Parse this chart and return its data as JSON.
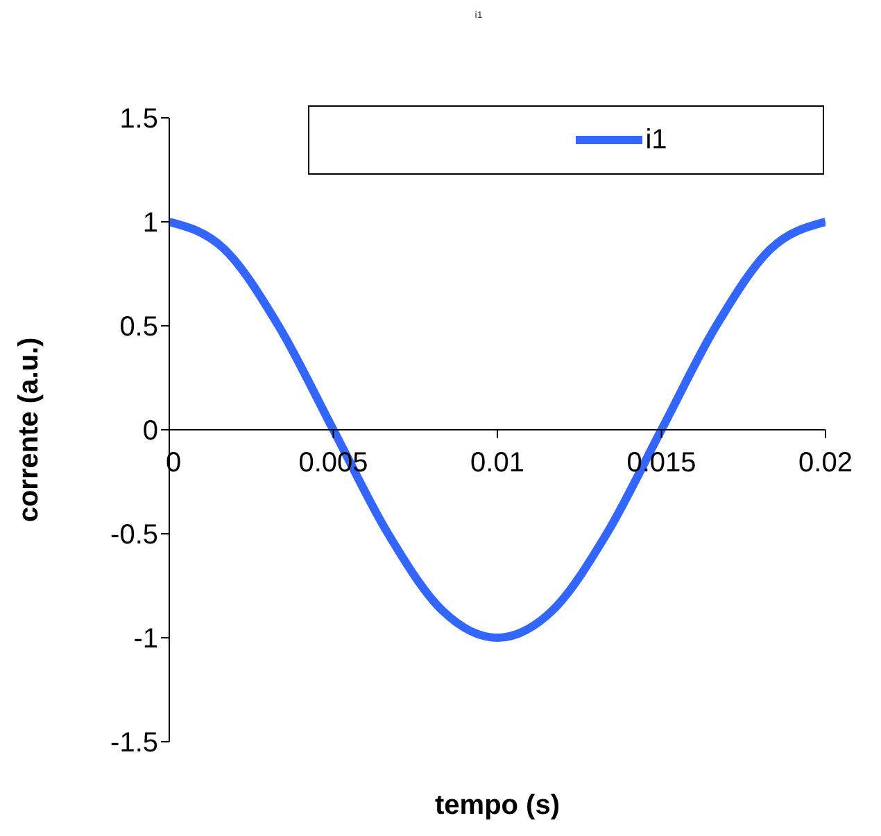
{
  "chart_data": {
    "type": "line",
    "title": "i1",
    "xlabel": "tempo (s)",
    "ylabel": "corrente (a.u.)",
    "x": [
      0,
      0.00167,
      0.00333,
      0.005,
      0.00667,
      0.00833,
      0.01,
      0.01167,
      0.01333,
      0.015,
      0.01667,
      0.01833,
      0.02
    ],
    "series": [
      {
        "name": "i1",
        "color": "#3366ff",
        "values": [
          1,
          0.87,
          0.5,
          0,
          -0.5,
          -0.87,
          -1,
          -0.87,
          -0.5,
          0,
          0.5,
          0.87,
          1
        ]
      }
    ],
    "xlim": [
      0,
      0.02
    ],
    "xticks": [
      0,
      0.005,
      0.01,
      0.015,
      0.02
    ],
    "ylim": [
      -1.5,
      1.5
    ],
    "yticks": [
      -1.5,
      -1,
      -0.5,
      0,
      0.5,
      1,
      1.5
    ],
    "grid": false,
    "legend": "top right",
    "marker": "none",
    "line_style": "solid"
  }
}
